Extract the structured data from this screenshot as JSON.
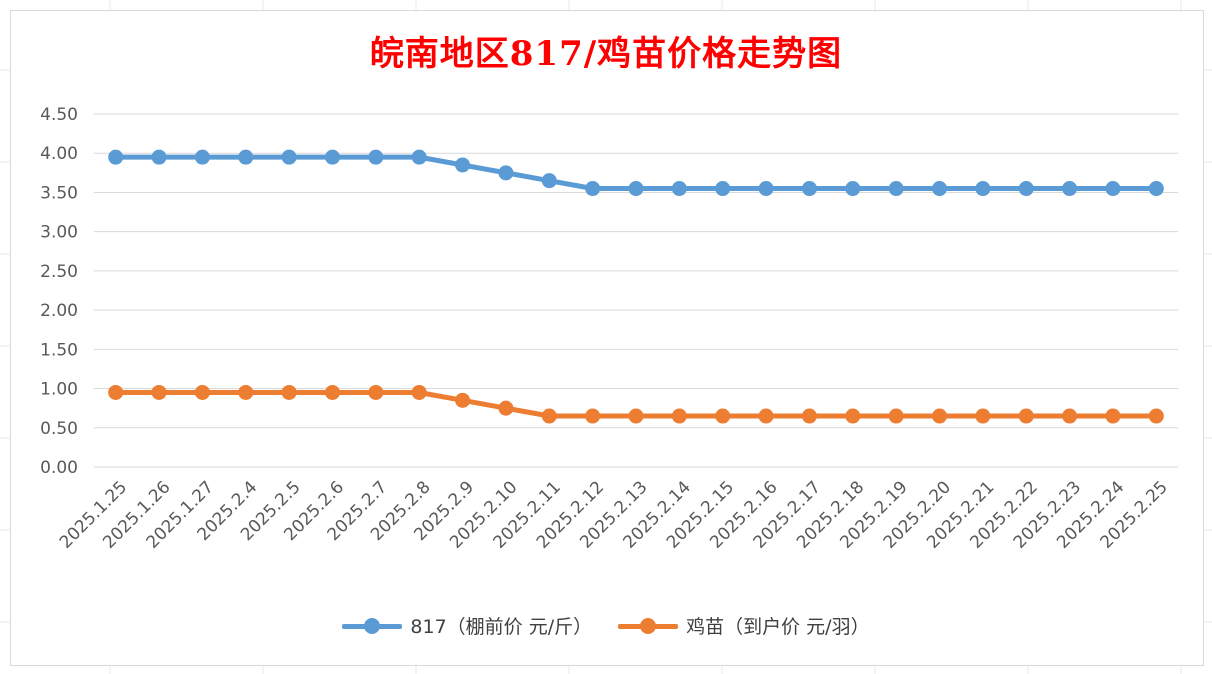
{
  "title": "皖南地区817/鸡苗价格走势图",
  "colors": {
    "title": "#ff0000",
    "series_817": "#5b9bd5",
    "series_chick": "#ed7d31",
    "grid": "#d9d9d9"
  },
  "chart_data": {
    "type": "line",
    "title": "皖南地区817/鸡苗价格走势图",
    "xlabel": "",
    "ylabel": "",
    "ylim": [
      0,
      4.5
    ],
    "yticks": [
      "0.00",
      "0.50",
      "1.00",
      "1.50",
      "2.00",
      "2.50",
      "3.00",
      "3.50",
      "4.00",
      "4.50"
    ],
    "grid": true,
    "legend_position": "bottom",
    "categories": [
      "2025.1.25",
      "2025.1.26",
      "2025.1.27",
      "2025.2.4",
      "2025.2.5",
      "2025.2.6",
      "2025.2.7",
      "2025.2.8",
      "2025.2.9",
      "2025.2.10",
      "2025.2.11",
      "2025.2.12",
      "2025.2.13",
      "2025.2.14",
      "2025.2.15",
      "2025.2.16",
      "2025.2.17",
      "2025.2.18",
      "2025.2.19",
      "2025.2.20",
      "2025.2.21",
      "2025.2.22",
      "2025.2.23",
      "2025.2.24",
      "2025.2.25"
    ],
    "series": [
      {
        "name": "817（棚前价 元/斤）",
        "color": "#5b9bd5",
        "values": [
          3.95,
          3.95,
          3.95,
          3.95,
          3.95,
          3.95,
          3.95,
          3.95,
          3.85,
          3.75,
          3.65,
          3.55,
          3.55,
          3.55,
          3.55,
          3.55,
          3.55,
          3.55,
          3.55,
          3.55,
          3.55,
          3.55,
          3.55,
          3.55,
          3.55
        ]
      },
      {
        "name": "鸡苗（到户价 元/羽）",
        "color": "#ed7d31",
        "values": [
          0.95,
          0.95,
          0.95,
          0.95,
          0.95,
          0.95,
          0.95,
          0.95,
          0.85,
          0.75,
          0.65,
          0.65,
          0.65,
          0.65,
          0.65,
          0.65,
          0.65,
          0.65,
          0.65,
          0.65,
          0.65,
          0.65,
          0.65,
          0.65,
          0.65
        ]
      }
    ]
  }
}
